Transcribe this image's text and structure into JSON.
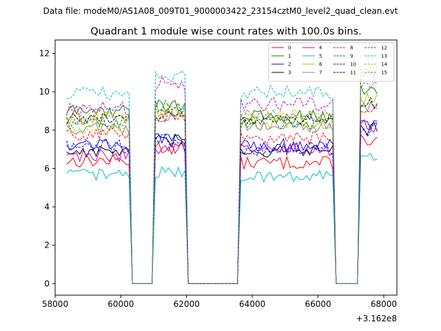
{
  "chart_data": {
    "type": "line",
    "suptitle": "Data file: modeM0/AS1A08_009T01_9000003422_23154cztM0_level2_quad_clean.evt",
    "title": "Quadrant 1 module wise count rates with 100.0s bins.",
    "xlabel": "",
    "ylabel": "",
    "x_offset_label": "+3.162e8",
    "x_tick_labels": [
      "58000",
      "60000",
      "62000",
      "64000",
      "66000",
      "68000"
    ],
    "y_tick_labels": [
      "0",
      "2",
      "4",
      "6",
      "8",
      "10",
      "12"
    ],
    "x_offset": 316200000,
    "xlim": [
      58000,
      68400
    ],
    "ylim": [
      -0.6,
      12.7
    ],
    "grid": false,
    "legend_position": "top-right",
    "legend_columns": 4,
    "segments": [
      {
        "start": 58350,
        "end": 60250
      },
      {
        "start": 61050,
        "end": 61950
      },
      {
        "start": 63650,
        "end": 66450
      },
      {
        "start": 67300,
        "end": 67850
      }
    ],
    "gap_level": 0,
    "series": [
      {
        "name": "0",
        "color": "#ff0000",
        "dashed": false,
        "levels": [
          6.4,
          7.1,
          6.3,
          7.5
        ],
        "amplitude": 0.35
      },
      {
        "name": "1",
        "color": "#008000",
        "dashed": false,
        "levels": [
          9.0,
          9.3,
          8.7,
          10.1
        ],
        "amplitude": 0.35
      },
      {
        "name": "2",
        "color": "#0000ff",
        "dashed": false,
        "levels": [
          7.3,
          7.5,
          7.2,
          8.3
        ],
        "amplitude": 0.35
      },
      {
        "name": "3",
        "color": "#000000",
        "dashed": false,
        "levels": [
          6.9,
          7.4,
          6.9,
          8.1
        ],
        "amplitude": 0.35
      },
      {
        "name": "4",
        "color": "#bf00bf",
        "dashed": false,
        "levels": [
          6.7,
          7.1,
          7.0,
          8.2
        ],
        "amplitude": 0.35
      },
      {
        "name": "5",
        "color": "#00bfbf",
        "dashed": false,
        "levels": [
          5.7,
          5.8,
          5.6,
          6.6
        ],
        "amplitude": 0.3
      },
      {
        "name": "6",
        "color": "#bfbf00",
        "dashed": false,
        "levels": [
          8.6,
          9.0,
          8.4,
          9.6
        ],
        "amplitude": 0.4
      },
      {
        "name": "7",
        "color": "#808080",
        "dashed": false,
        "levels": [
          8.1,
          8.7,
          8.2,
          9.2
        ],
        "amplitude": 0.35
      },
      {
        "name": "8",
        "color": "#ff0000",
        "dashed": true,
        "levels": [
          7.8,
          8.7,
          7.6,
          9.0
        ],
        "amplitude": 0.35
      },
      {
        "name": "9",
        "color": "#008000",
        "dashed": true,
        "levels": [
          8.4,
          9.2,
          8.4,
          10.6
        ],
        "amplitude": 0.35
      },
      {
        "name": "10",
        "color": "#0000ff",
        "dashed": true,
        "levels": [
          7.1,
          7.5,
          7.0,
          8.0
        ],
        "amplitude": 0.4
      },
      {
        "name": "11",
        "color": "#000000",
        "dashed": true,
        "levels": [
          8.6,
          8.7,
          8.6,
          9.4
        ],
        "amplitude": 0.3
      },
      {
        "name": "12",
        "color": "#bf00bf",
        "dashed": true,
        "levels": [
          9.1,
          10.4,
          9.4,
          11.0
        ],
        "amplitude": 0.4
      },
      {
        "name": "13",
        "color": "#00bfbf",
        "dashed": true,
        "levels": [
          9.9,
          10.8,
          10.0,
          11.5
        ],
        "amplitude": 0.35
      },
      {
        "name": "14",
        "color": "#bfbf00",
        "dashed": true,
        "levels": [
          8.1,
          9.0,
          8.8,
          11.2
        ],
        "amplitude": 0.35
      },
      {
        "name": "15",
        "color": "#808080",
        "dashed": true,
        "levels": [
          8.5,
          9.0,
          8.8,
          10.4
        ],
        "amplitude": 0.3
      }
    ]
  }
}
